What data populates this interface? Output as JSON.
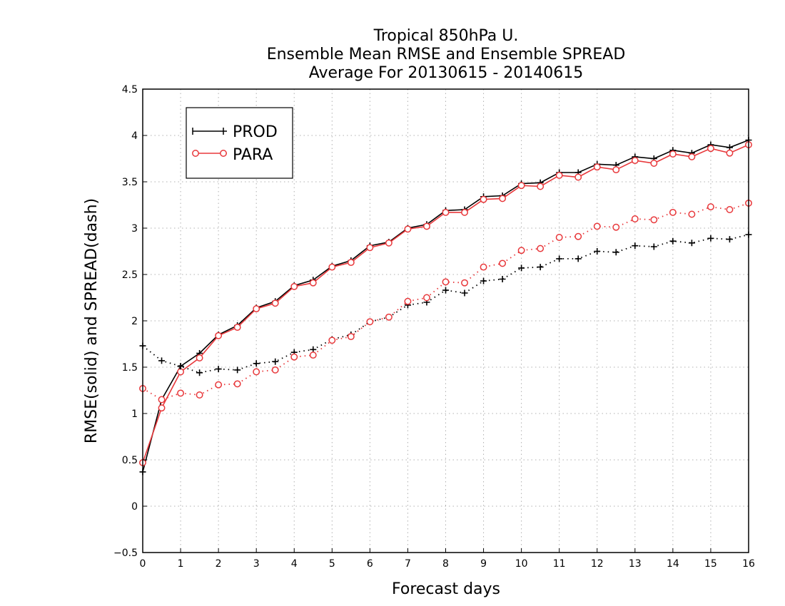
{
  "chart_data": {
    "type": "line",
    "title": [
      "Tropical 850hPa U.",
      "Ensemble Mean RMSE and Ensemble SPREAD",
      "Average For 20130615 - 20140615"
    ],
    "xlabel": "Forecast days",
    "ylabel": "RMSE(solid) and SPREAD(dash)",
    "xlim": [
      0,
      16
    ],
    "ylim": [
      -0.5,
      4.5
    ],
    "xticks": [
      0,
      1,
      2,
      3,
      4,
      5,
      6,
      7,
      8,
      9,
      10,
      11,
      12,
      13,
      14,
      15,
      16
    ],
    "xtick_labels": [
      "0",
      "1",
      "2",
      "3",
      "4",
      "5",
      "6",
      "7",
      "8",
      "9",
      "10",
      "11",
      "12",
      "13",
      "14",
      "15",
      "16"
    ],
    "yticks": [
      -0.5,
      0,
      0.5,
      1,
      1.5,
      2,
      2.5,
      3,
      3.5,
      4,
      4.5
    ],
    "ytick_labels": [
      "−0.5",
      "0",
      "0.5",
      "1",
      "1.5",
      "2",
      "2.5",
      "3",
      "3.5",
      "4",
      "4.5"
    ],
    "grid": true,
    "legend_position": "top-left",
    "x": [
      0,
      0.5,
      1,
      1.5,
      2,
      2.5,
      3,
      3.5,
      4,
      4.5,
      5,
      5.5,
      6,
      6.5,
      7,
      7.5,
      8,
      8.5,
      9,
      9.5,
      10,
      10.5,
      11,
      11.5,
      12,
      12.5,
      13,
      13.5,
      14,
      14.5,
      15,
      15.5,
      16
    ],
    "series": [
      {
        "name": "PROD",
        "kind": "RMSE",
        "style": "solid",
        "marker": "plus",
        "color": "#000000",
        "values": [
          0.37,
          1.15,
          1.51,
          1.65,
          1.85,
          1.95,
          2.14,
          2.21,
          2.38,
          2.44,
          2.59,
          2.65,
          2.81,
          2.85,
          3.0,
          3.04,
          3.19,
          3.2,
          3.34,
          3.35,
          3.48,
          3.49,
          3.6,
          3.6,
          3.69,
          3.68,
          3.77,
          3.75,
          3.84,
          3.81,
          3.9,
          3.87,
          3.95
        ]
      },
      {
        "name": "PARA",
        "kind": "RMSE",
        "style": "solid",
        "marker": "circle",
        "color": "#e8383b",
        "values": [
          0.47,
          1.06,
          1.45,
          1.6,
          1.84,
          1.93,
          2.13,
          2.19,
          2.37,
          2.41,
          2.58,
          2.63,
          2.79,
          2.84,
          2.99,
          3.02,
          3.17,
          3.17,
          3.31,
          3.32,
          3.46,
          3.45,
          3.57,
          3.55,
          3.66,
          3.63,
          3.73,
          3.7,
          3.8,
          3.77,
          3.86,
          3.81,
          3.9
        ]
      },
      {
        "name": "PROD",
        "kind": "SPREAD",
        "style": "dotted",
        "marker": "plus",
        "color": "#000000",
        "values": [
          1.73,
          1.57,
          1.51,
          1.44,
          1.48,
          1.47,
          1.54,
          1.56,
          1.66,
          1.69,
          1.8,
          1.85,
          1.99,
          2.04,
          2.17,
          2.2,
          2.33,
          2.3,
          2.43,
          2.45,
          2.57,
          2.58,
          2.67,
          2.67,
          2.75,
          2.74,
          2.81,
          2.8,
          2.86,
          2.84,
          2.89,
          2.88,
          2.93
        ]
      },
      {
        "name": "PARA",
        "kind": "SPREAD",
        "style": "dotted",
        "marker": "circle",
        "color": "#e8383b",
        "values": [
          1.27,
          1.15,
          1.22,
          1.2,
          1.31,
          1.32,
          1.45,
          1.47,
          1.61,
          1.63,
          1.79,
          1.83,
          1.99,
          2.04,
          2.21,
          2.25,
          2.42,
          2.41,
          2.58,
          2.62,
          2.76,
          2.78,
          2.9,
          2.91,
          3.02,
          3.01,
          3.1,
          3.09,
          3.17,
          3.15,
          3.23,
          3.2,
          3.27
        ]
      }
    ],
    "legend": [
      {
        "label": "PROD",
        "marker": "plus",
        "color": "#000000"
      },
      {
        "label": "PARA",
        "marker": "circle",
        "color": "#e8383b"
      }
    ]
  }
}
